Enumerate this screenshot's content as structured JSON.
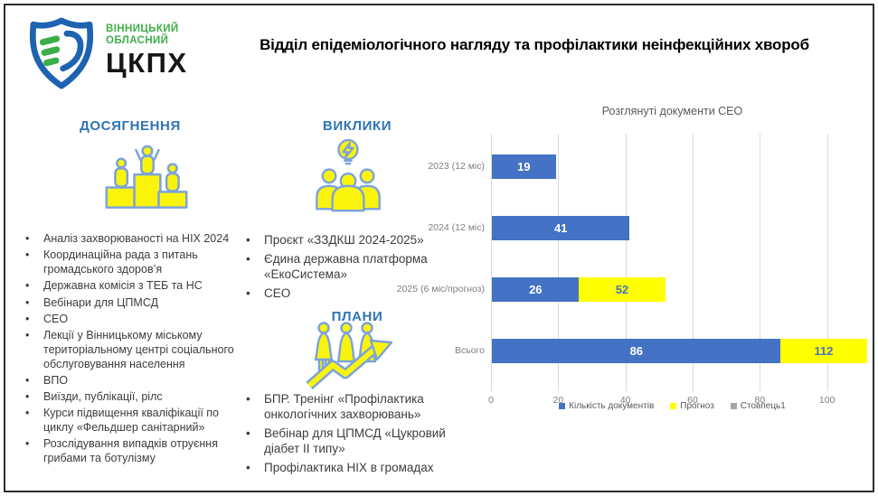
{
  "slide": {
    "title": "Відділ епідеміологічного  нагляду та профілактики неінфекційних хвороб"
  },
  "logo": {
    "org_line1": "ВІННИЦЬКИЙ",
    "org_line2": "ОБЛАСНИЙ",
    "org_abbr": "ЦКПХ"
  },
  "sections": {
    "achievements": {
      "heading": "ДОСЯГНЕННЯ",
      "icon": "podium-winners-icon",
      "items": [
        "Аналіз захворюваності на НІХ 2024",
        "Координаційна рада з питань громадського здоров’я",
        "Державна комісія з ТЕБ та НС",
        "Вебінари для ЦПМСД",
        "СЕО",
        "Лекції у Вінницькому міському територіальному центрі соціального обслуговування населення",
        "ВПО",
        "Виїзди, публікації, рілс",
        "Курси підвищення кваліфікації по циклу «Фельдшер санітарний»",
        "Розслідування випадків отруєння грибами та ботулізму"
      ]
    },
    "challenges": {
      "heading": "ВИКЛИКИ",
      "icon": "team-idea-icon",
      "items": [
        "Проєкт «ЗЗДКШ 2024-2025»",
        "Єдина державна платформа «ЕкоСистема»",
        "СЕО"
      ]
    },
    "plans": {
      "heading": "ПЛАНИ",
      "icon": "team-growth-icon",
      "items": [
        "БПР. Тренінг «Профілактика онкологічних захворювань»",
        "Вебінар для ЦПМСД «Цукровий діабет II типу»",
        "Профілактика НІХ в громадах"
      ]
    }
  },
  "chart_data": {
    "type": "bar",
    "orientation": "horizontal",
    "title": "Розглянуті документи СЕО",
    "categories": [
      "2023 (12 міс)",
      "2024 (12 міс)",
      "2025 (6 міс/прогноз)",
      "Всього"
    ],
    "series": [
      {
        "name": "Кількість документів",
        "color": "#4472C4",
        "values": [
          19,
          41,
          26,
          86
        ]
      },
      {
        "name": "Прогноз",
        "color": "#FFFF00",
        "stack_end_values": [
          null,
          null,
          52,
          112
        ]
      },
      {
        "name": "Стовпець1",
        "color": "#A6A6A6",
        "values": [
          null,
          null,
          null,
          null
        ]
      }
    ],
    "xticks": [
      0,
      20,
      40,
      60,
      80,
      100
    ],
    "xlim": [
      0,
      113
    ],
    "grid": true,
    "legend_position": "bottom",
    "blue_label_color": "#FFFFFF",
    "yellow_label_color": "#4472C4"
  },
  "colors": {
    "accent_heading_blue": "#2E74B5",
    "bar_blue": "#4472C4",
    "bar_yellow": "#FFFF00",
    "legend_gray": "#A6A6A6",
    "grid_gray": "#D9D9D9",
    "axis_text_gray": "#7F7F7F",
    "chart_title_gray": "#595959",
    "logo_green": "#3FAE49",
    "logo_blue": "#1E63B0",
    "icon_fill_yellow": "#FAF40C",
    "icon_outline_blue": "#7CA2DC"
  }
}
